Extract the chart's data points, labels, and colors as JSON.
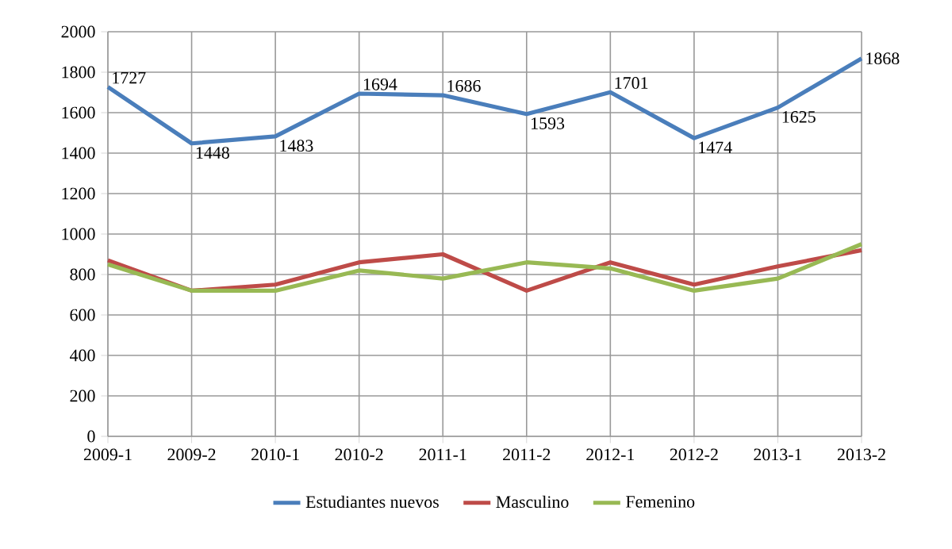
{
  "chart_data": {
    "type": "line",
    "categories": [
      "2009-1",
      "2009-2",
      "2010-1",
      "2010-2",
      "2011-1",
      "2011-2",
      "2012-1",
      "2012-2",
      "2013-1",
      "2013-2"
    ],
    "series": [
      {
        "name": "Estudiantes nuevos",
        "color": "#4a7ebb",
        "values": [
          1727,
          1448,
          1483,
          1694,
          1686,
          1593,
          1701,
          1474,
          1625,
          1868
        ],
        "value_labels": [
          "1727",
          "1448",
          "1483",
          "1694",
          "1686",
          "1593",
          "1701",
          "1474",
          "1625",
          "1868"
        ]
      },
      {
        "name": "Masculino",
        "color": "#be4b48",
        "values": [
          870,
          720,
          750,
          860,
          900,
          720,
          860,
          750,
          840,
          920
        ]
      },
      {
        "name": "Femenino",
        "color": "#98b954",
        "values": [
          850,
          720,
          720,
          820,
          780,
          860,
          830,
          720,
          780,
          950
        ]
      }
    ],
    "ylim": [
      0,
      2000
    ],
    "yticks": [
      0,
      200,
      400,
      600,
      800,
      1000,
      1200,
      1400,
      1600,
      1800,
      2000
    ],
    "grid": true,
    "legend": "bottom",
    "marker": "none",
    "line_style": "solid"
  }
}
